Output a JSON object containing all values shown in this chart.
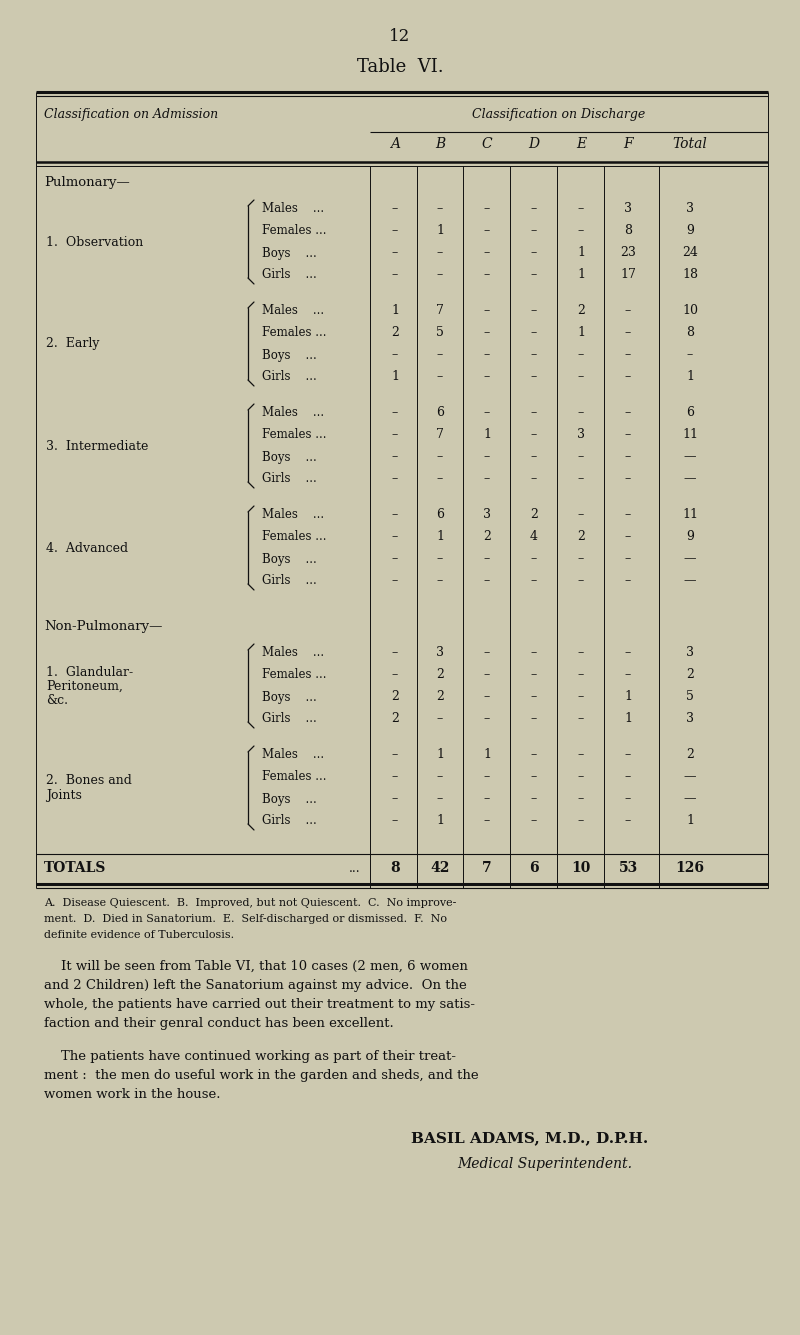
{
  "bg_color": "#cdc9b0",
  "page_number": "12",
  "table_title": "Table  VI.",
  "col_header_italic": "Classification on Discharge",
  "row_header_italic": "Classification on Admission",
  "col_labels": [
    "A",
    "B",
    "C",
    "D",
    "E",
    "F",
    "Total"
  ],
  "groups": [
    {
      "section": "Pulmonary—",
      "entries": [
        {
          "label": "1.  Observation",
          "label_lines": [
            "1.  Observation"
          ],
          "sub_rows": [
            [
              "Males    ...",
              "–",
              "–",
              "–",
              "–",
              "–",
              "3",
              "3"
            ],
            [
              "Females ...",
              "–",
              "1",
              "–",
              "–",
              "–",
              "8",
              "9"
            ],
            [
              "Boys    ...",
              "–",
              "–",
              "–",
              "–",
              "1",
              "23",
              "24"
            ],
            [
              "Girls    ...",
              "–",
              "–",
              "–",
              "–",
              "1",
              "17",
              "18"
            ]
          ]
        },
        {
          "label": "2.  Early",
          "label_lines": [
            "2.  Early"
          ],
          "sub_rows": [
            [
              "Males    ...",
              "1",
              "7",
              "–",
              "–",
              "2",
              "–",
              "10"
            ],
            [
              "Females ...",
              "2",
              "5",
              "–",
              "–",
              "1",
              "–",
              "8"
            ],
            [
              "Boys    ...",
              "–",
              "–",
              "–",
              "–",
              "–",
              "–",
              "–"
            ],
            [
              "Girls    ...",
              "1",
              "–",
              "–",
              "–",
              "–",
              "–",
              "1"
            ]
          ]
        },
        {
          "label": "3.  Intermediate",
          "label_lines": [
            "3.  Intermediate"
          ],
          "sub_rows": [
            [
              "Males    ...",
              "–",
              "6",
              "–",
              "–",
              "–",
              "–",
              "6"
            ],
            [
              "Females ...",
              "–",
              "7",
              "1",
              "–",
              "3",
              "–",
              "11"
            ],
            [
              "Boys    ...",
              "–",
              "–",
              "–",
              "–",
              "–",
              "–",
              "—"
            ],
            [
              "Girls    ...",
              "–",
              "–",
              "–",
              "–",
              "–",
              "–",
              "—"
            ]
          ]
        },
        {
          "label": "4.  Advanced",
          "label_lines": [
            "4.  Advanced"
          ],
          "sub_rows": [
            [
              "Males    ...",
              "–",
              "6",
              "3",
              "2",
              "–",
              "–",
              "11"
            ],
            [
              "Females ...",
              "–",
              "1",
              "2",
              "4",
              "2",
              "–",
              "9"
            ],
            [
              "Boys    ...",
              "–",
              "–",
              "–",
              "–",
              "–",
              "–",
              "—"
            ],
            [
              "Girls    ...",
              "–",
              "–",
              "–",
              "–",
              "–",
              "–",
              "—"
            ]
          ]
        }
      ]
    },
    {
      "section": "Non-Pulmonary—",
      "entries": [
        {
          "label": "1.  Glandular-",
          "label_lines": [
            "1.  Glandular-",
            "    Peritoneum,",
            "    &c."
          ],
          "sub_rows": [
            [
              "Males    ...",
              "–",
              "3",
              "–",
              "–",
              "–",
              "–",
              "3"
            ],
            [
              "Females ...",
              "–",
              "2",
              "–",
              "–",
              "–",
              "–",
              "2"
            ],
            [
              "Boys    ...",
              "2",
              "2",
              "–",
              "–",
              "–",
              "1",
              "5"
            ],
            [
              "Girls    ...",
              "2",
              "–",
              "–",
              "–",
              "–",
              "1",
              "3"
            ]
          ]
        },
        {
          "label": "2.  Bones and",
          "label_lines": [
            "2.  Bones and",
            "    Joints"
          ],
          "sub_rows": [
            [
              "Males    ...",
              "–",
              "1",
              "1",
              "–",
              "–",
              "–",
              "2"
            ],
            [
              "Females ...",
              "–",
              "–",
              "–",
              "–",
              "–",
              "–",
              "—"
            ],
            [
              "Boys    ...",
              "–",
              "–",
              "–",
              "–",
              "–",
              "–",
              "—"
            ],
            [
              "Girls    ...",
              "–",
              "1",
              "–",
              "–",
              "–",
              "–",
              "1"
            ]
          ]
        }
      ]
    }
  ],
  "totals_label": "TOTALS",
  "totals_dots": "...",
  "totals_values": [
    "8",
    "42",
    "7",
    "6",
    "10",
    "53",
    "126"
  ],
  "footnote_lines": [
    "A.  Disease Quiescent.  B.  Improved, but not Quiescent.  C.  No improve-",
    "ment.  D.  Died in Sanatorium.  E.  Self-discharged or dismissed.  F.  No",
    "definite evidence of Tuberculosis."
  ],
  "para1_lines": [
    "    It will be seen from Table VI, that 10 cases (2 men, 6 women",
    "and 2 Children) left the Sanatorium against my advice.  On the",
    "whole, the patients have carried out their treatment to my satis-",
    "faction and their genral conduct has been excellent."
  ],
  "para2_lines": [
    "    The patients have continued working as part of their treat-",
    "ment :  the men do useful work in the garden and sheds, and the",
    "women work in the house."
  ],
  "signature1": "BASIL ADAMS, M.D., D.P.H.",
  "signature2": "Medical Superintendent."
}
